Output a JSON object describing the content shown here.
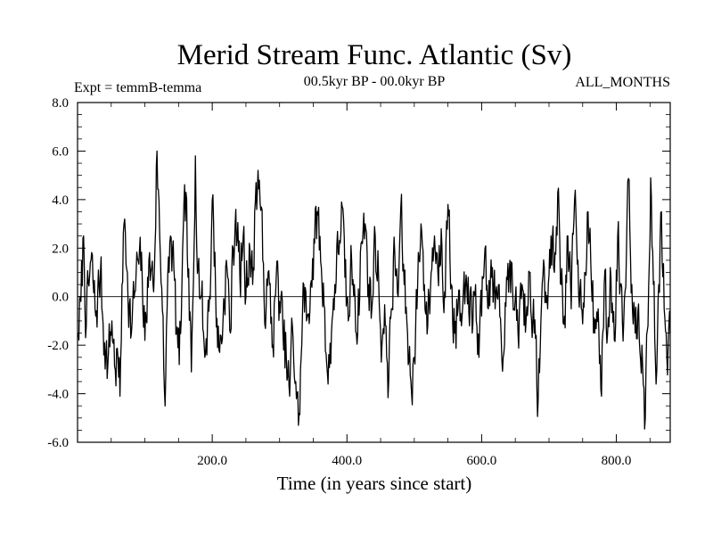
{
  "chart_data": {
    "type": "line",
    "title": "Merid Stream Func. Atlantic (Sv)",
    "subtitle_left": "Expt = temmB-temma",
    "subtitle_center": "00.5kyr BP - 00.0kyr BP",
    "subtitle_right": "ALL_MONTHS",
    "xlabel": "Time (in years since start)",
    "ylabel": "",
    "xlim": [
      0,
      880
    ],
    "ylim": [
      -6,
      8
    ],
    "xticks": [
      200,
      400,
      600,
      800
    ],
    "xtick_labels": [
      "200.0",
      "400.0",
      "600.0",
      "800.0"
    ],
    "yticks": [
      -6,
      -4,
      -2,
      0,
      2,
      4,
      6,
      8
    ],
    "ytick_labels": [
      "-6.0",
      "-4.0",
      "-2.0",
      "0.0",
      "2.0",
      "4.0",
      "6.0",
      "8.0"
    ],
    "zero_line": 0,
    "series": [
      {
        "name": "Merid Stream Func. Atlantic",
        "x_start": 1,
        "x_step": 1,
        "count": 880,
        "anchors": [
          [
            1,
            -1.5
          ],
          [
            5,
            -0.2
          ],
          [
            9,
            2.5
          ],
          [
            13,
            -1.2
          ],
          [
            20,
            1.5
          ],
          [
            27,
            -0.8
          ],
          [
            34,
            1.0
          ],
          [
            40,
            -1.9
          ],
          [
            45,
            -2.8
          ],
          [
            51,
            -1.0
          ],
          [
            56,
            -3.0
          ],
          [
            60,
            -2.5
          ],
          [
            63,
            -4.1
          ],
          [
            66,
            0.5
          ],
          [
            70,
            3.2
          ],
          [
            74,
            1.0
          ],
          [
            80,
            -1.5
          ],
          [
            85,
            0.2
          ],
          [
            90,
            1.5
          ],
          [
            96,
            0.8
          ],
          [
            100,
            -1.8
          ],
          [
            104,
            0.8
          ],
          [
            110,
            1.2
          ],
          [
            113,
            0.2
          ],
          [
            118,
            6.0
          ],
          [
            122,
            2.5
          ],
          [
            127,
            -0.8
          ],
          [
            130,
            -4.5
          ],
          [
            133,
            -0.5
          ],
          [
            138,
            2.5
          ],
          [
            143,
            1.2
          ],
          [
            147,
            -1.5
          ],
          [
            151,
            -2.8
          ],
          [
            155,
            0.5
          ],
          [
            161,
            4.3
          ],
          [
            164,
            0.8
          ],
          [
            169,
            -3.1
          ],
          [
            172,
            0.5
          ],
          [
            175,
            5.8
          ],
          [
            179,
            1.2
          ],
          [
            184,
            0.0
          ],
          [
            189,
            -2.5
          ],
          [
            193,
            -1.0
          ],
          [
            198,
            1.2
          ],
          [
            201,
            4.2
          ],
          [
            205,
            0.2
          ],
          [
            210,
            -2.2
          ],
          [
            216,
            -1.0
          ],
          [
            221,
            1.5
          ],
          [
            227,
            -1.5
          ],
          [
            231,
            2.0
          ],
          [
            235,
            3.6
          ],
          [
            241,
            0.8
          ],
          [
            246,
            2.5
          ],
          [
            250,
            0.0
          ],
          [
            255,
            2.2
          ],
          [
            260,
            0.5
          ],
          [
            265,
            4.7
          ],
          [
            270,
            4.8
          ],
          [
            275,
            1.5
          ],
          [
            280,
            -0.5
          ],
          [
            285,
            0.5
          ],
          [
            290,
            -2.0
          ],
          [
            295,
            0.8
          ],
          [
            300,
            -0.2
          ],
          [
            305,
            -1.5
          ],
          [
            310,
            -2.5
          ],
          [
            315,
            -4.1
          ],
          [
            319,
            -1.2
          ],
          [
            324,
            -3.5
          ],
          [
            328,
            -5.3
          ],
          [
            332,
            -2.5
          ],
          [
            336,
            0.5
          ],
          [
            340,
            -1.0
          ],
          [
            346,
            0.5
          ],
          [
            352,
            2.2
          ],
          [
            356,
            3.5
          ],
          [
            362,
            1.2
          ],
          [
            367,
            -0.5
          ],
          [
            372,
            -3.6
          ],
          [
            377,
            -1.5
          ],
          [
            382,
            0.5
          ],
          [
            387,
            1.8
          ],
          [
            392,
            3.9
          ],
          [
            397,
            0.8
          ],
          [
            402,
            -1.0
          ],
          [
            407,
            1.5
          ],
          [
            411,
            0.5
          ],
          [
            416,
            -1.5
          ],
          [
            421,
            2.2
          ],
          [
            427,
            3.0
          ],
          [
            432,
            0.5
          ],
          [
            437,
            -0.5
          ],
          [
            442,
            2.5
          ],
          [
            447,
            0.8
          ],
          [
            452,
            -2.0
          ],
          [
            458,
            -1.2
          ],
          [
            462,
            -3.5
          ],
          [
            466,
            -0.5
          ],
          [
            471,
            1.8
          ],
          [
            476,
            0.0
          ],
          [
            480,
            3.7
          ],
          [
            485,
            0.5
          ],
          [
            490,
            -1.5
          ],
          [
            495,
            -3.5
          ],
          [
            500,
            -2.5
          ],
          [
            505,
            0.5
          ],
          [
            510,
            3.0
          ],
          [
            515,
            0.5
          ],
          [
            520,
            -1.2
          ],
          [
            525,
            1.0
          ],
          [
            530,
            2.5
          ],
          [
            535,
            1.0
          ],
          [
            540,
            2.8
          ],
          [
            545,
            0.2
          ],
          [
            550,
            3.8
          ],
          [
            555,
            0.5
          ],
          [
            560,
            -1.5
          ],
          [
            565,
            -0.5
          ],
          [
            570,
            -1.2
          ],
          [
            575,
            -0.3
          ],
          [
            580,
            0.8
          ],
          [
            586,
            -1.5
          ],
          [
            591,
            0.5
          ],
          [
            596,
            -2.5
          ],
          [
            600,
            -0.8
          ],
          [
            605,
            2.0
          ],
          [
            610,
            -0.5
          ],
          [
            616,
            1.2
          ],
          [
            620,
            -0.5
          ],
          [
            626,
            0.5
          ],
          [
            632,
            -2.5
          ],
          [
            637,
            0.8
          ],
          [
            642,
            1.5
          ],
          [
            648,
            -0.5
          ],
          [
            654,
            -1.5
          ],
          [
            660,
            0.5
          ],
          [
            666,
            -1.0
          ],
          [
            672,
            1.0
          ],
          [
            678,
            -1.5
          ],
          [
            684,
            -4.2
          ],
          [
            688,
            -1.0
          ],
          [
            693,
            1.2
          ],
          [
            698,
            -0.5
          ],
          [
            703,
            2.5
          ],
          [
            708,
            1.0
          ],
          [
            713,
            4.3
          ],
          [
            718,
            0.5
          ],
          [
            723,
            -0.8
          ],
          [
            728,
            2.5
          ],
          [
            733,
            -0.5
          ],
          [
            738,
            4.0
          ],
          [
            743,
            1.5
          ],
          [
            748,
            -0.5
          ],
          [
            753,
            1.0
          ],
          [
            758,
            3.5
          ],
          [
            763,
            0.5
          ],
          [
            768,
            -1.5
          ],
          [
            773,
            -0.5
          ],
          [
            778,
            -4.1
          ],
          [
            782,
            0.5
          ],
          [
            787,
            -1.5
          ],
          [
            792,
            0.8
          ],
          [
            797,
            -1.8
          ],
          [
            802,
            2.5
          ],
          [
            806,
            0.5
          ],
          [
            811,
            -1.0
          ],
          [
            816,
            3.5
          ],
          [
            819,
            4.8
          ],
          [
            823,
            0.5
          ],
          [
            828,
            -1.5
          ],
          [
            833,
            -0.3
          ],
          [
            838,
            -2.0
          ],
          [
            843,
            -5.0
          ],
          [
            847,
            -1.2
          ],
          [
            851,
            4.9
          ],
          [
            855,
            0.5
          ],
          [
            859,
            -3.6
          ],
          [
            863,
            0.5
          ],
          [
            867,
            3.5
          ],
          [
            871,
            -0.5
          ],
          [
            875,
            -2.5
          ],
          [
            880,
            -1.5
          ]
        ],
        "noise_amplitude": 1.8,
        "noise_seed": 7
      }
    ]
  },
  "colors": {
    "line": "#000000",
    "axis": "#000000",
    "background": "#ffffff"
  }
}
